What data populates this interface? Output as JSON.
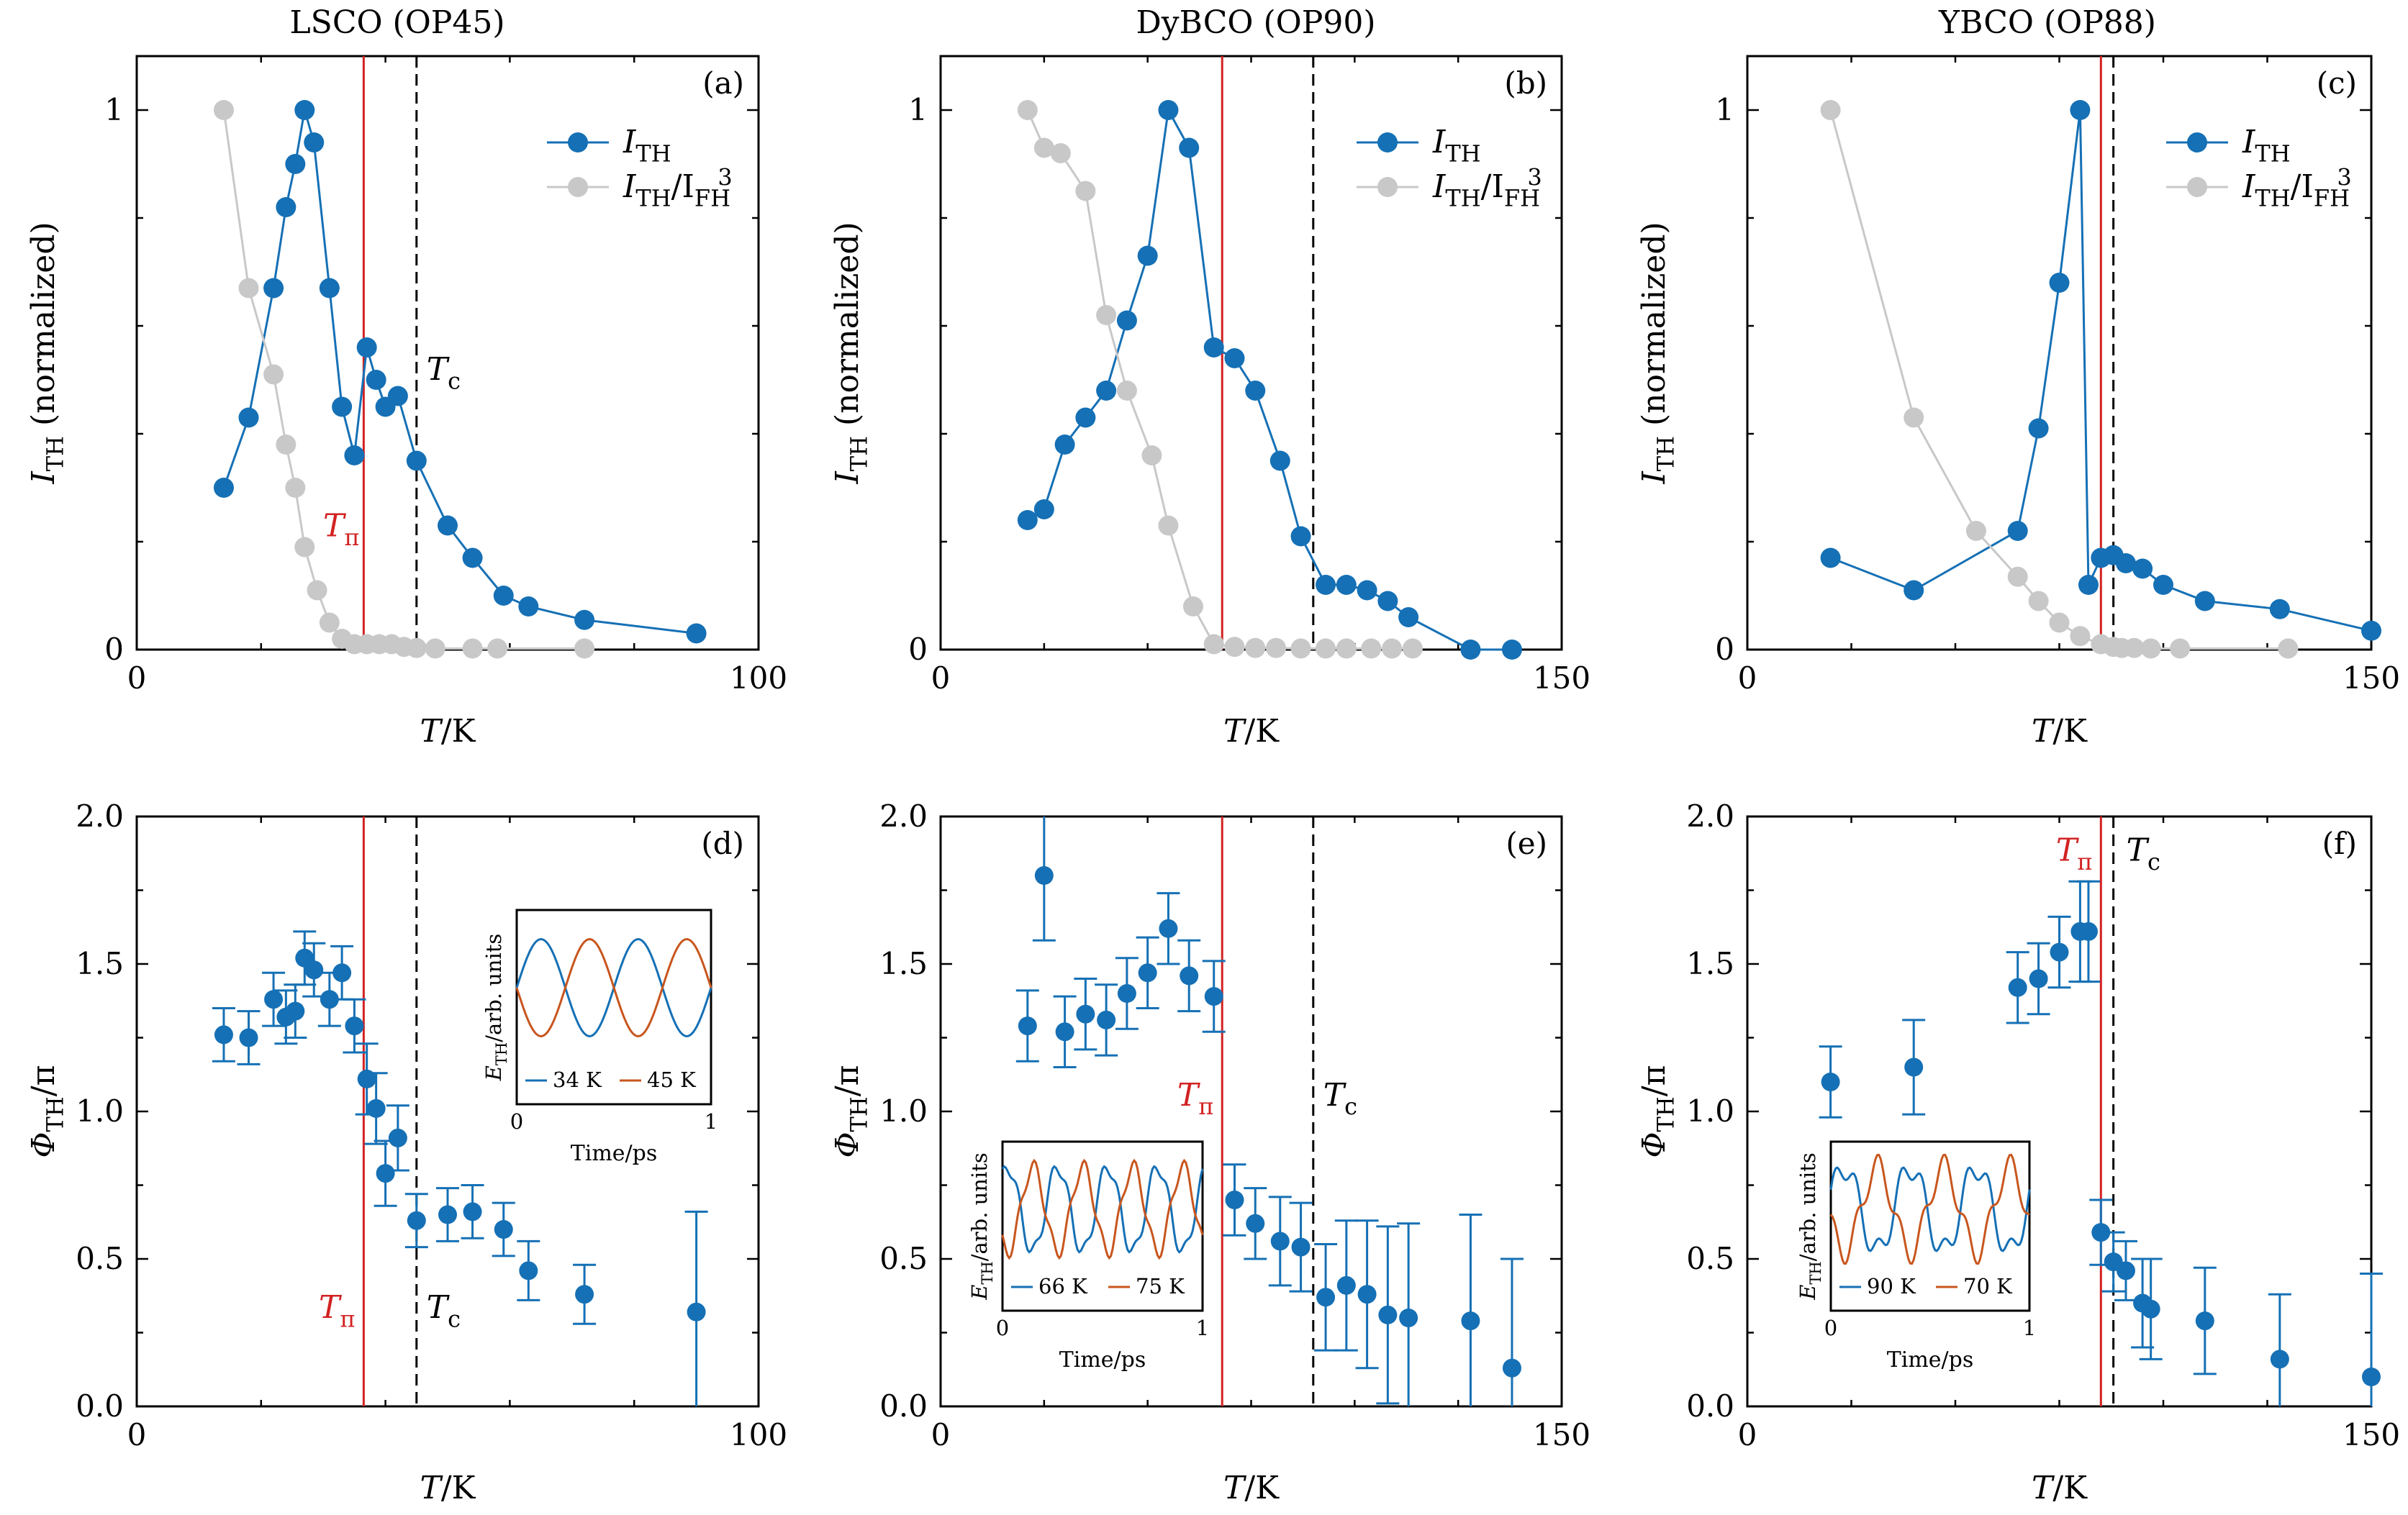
{
  "figure": {
    "columns": [
      {
        "title": "LSCO (OP45)"
      },
      {
        "title": "DyBCO (OP90)"
      },
      {
        "title": "YBCO (OP88)"
      }
    ]
  },
  "colors": {
    "blue": "#1570b5",
    "gray": "#c8c8c8",
    "red": "#d22222",
    "inset_orange": "#c8561e"
  },
  "chart_data": [
    {
      "id": "a",
      "type": "line",
      "panel_label": "(a)",
      "xlabel": "T/K",
      "ylabel": "I_TH (normalized)",
      "xlim": [
        0,
        100
      ],
      "ylim": [
        0,
        1.1
      ],
      "xticks": [
        0,
        100
      ],
      "yticks": [
        0,
        1
      ],
      "legend": {
        "position": "top-right",
        "entries": [
          "I_TH",
          "I_TH/I_FH^3"
        ]
      },
      "series": [
        {
          "name": "I_TH",
          "color": "#1570b5",
          "points": [
            [
              14,
              0.3
            ],
            [
              18,
              0.43
            ],
            [
              22,
              0.67
            ],
            [
              24,
              0.82
            ],
            [
              25.5,
              0.9
            ],
            [
              27,
              1.0
            ],
            [
              28.5,
              0.94
            ],
            [
              31,
              0.67
            ],
            [
              33,
              0.45
            ],
            [
              35,
              0.36
            ],
            [
              37,
              0.56
            ],
            [
              38.5,
              0.5
            ],
            [
              40,
              0.45
            ],
            [
              42,
              0.47
            ],
            [
              45,
              0.35
            ],
            [
              50,
              0.23
            ],
            [
              54,
              0.17
            ],
            [
              59,
              0.1
            ],
            [
              63,
              0.08
            ],
            [
              72,
              0.055
            ],
            [
              90,
              0.03
            ]
          ]
        },
        {
          "name": "I_TH/I_FH^3",
          "color": "#c8c8c8",
          "points": [
            [
              14,
              1.0
            ],
            [
              18,
              0.67
            ],
            [
              22,
              0.51
            ],
            [
              24,
              0.38
            ],
            [
              25.5,
              0.3
            ],
            [
              27,
              0.19
            ],
            [
              29,
              0.11
            ],
            [
              31,
              0.05
            ],
            [
              33,
              0.02
            ],
            [
              35,
              0.01
            ],
            [
              37,
              0.01
            ],
            [
              39,
              0.01
            ],
            [
              41,
              0.01
            ],
            [
              43,
              0.005
            ],
            [
              45,
              0.003
            ],
            [
              48,
              0.002
            ],
            [
              54,
              0.002
            ],
            [
              58,
              0.002
            ],
            [
              72,
              0.002
            ]
          ]
        }
      ],
      "vlines": [
        {
          "label": "T_π",
          "x": 36.5,
          "color": "#d22222",
          "style": "solid"
        },
        {
          "label": "T_c",
          "x": 45,
          "color": "#000000",
          "style": "dashed"
        }
      ]
    },
    {
      "id": "b",
      "type": "line",
      "panel_label": "(b)",
      "xlabel": "T/K",
      "ylabel": "I_TH (normalized)",
      "xlim": [
        0,
        150
      ],
      "ylim": [
        0,
        1.1
      ],
      "xticks": [
        0,
        150
      ],
      "yticks": [
        0,
        1
      ],
      "legend": {
        "position": "top-right",
        "entries": [
          "I_TH",
          "I_TH/I_FH^3"
        ]
      },
      "series": [
        {
          "name": "I_TH",
          "color": "#1570b5",
          "points": [
            [
              21,
              0.24
            ],
            [
              25,
              0.26
            ],
            [
              30,
              0.38
            ],
            [
              35,
              0.43
            ],
            [
              40,
              0.48
            ],
            [
              45,
              0.61
            ],
            [
              50,
              0.73
            ],
            [
              55,
              1.0
            ],
            [
              60,
              0.93
            ],
            [
              66,
              0.56
            ],
            [
              71,
              0.54
            ],
            [
              76,
              0.48
            ],
            [
              82,
              0.35
            ],
            [
              87,
              0.21
            ],
            [
              93,
              0.12
            ],
            [
              98,
              0.12
            ],
            [
              103,
              0.11
            ],
            [
              108,
              0.09
            ],
            [
              113,
              0.06
            ],
            [
              128,
              0.0
            ],
            [
              138,
              0.0
            ]
          ]
        },
        {
          "name": "I_TH/I_FH^3",
          "color": "#c8c8c8",
          "points": [
            [
              21,
              1.0
            ],
            [
              25,
              0.93
            ],
            [
              29,
              0.92
            ],
            [
              35,
              0.85
            ],
            [
              40,
              0.62
            ],
            [
              45,
              0.48
            ],
            [
              51,
              0.36
            ],
            [
              55,
              0.23
            ],
            [
              61,
              0.08
            ],
            [
              66,
              0.01
            ],
            [
              71,
              0.005
            ],
            [
              76,
              0.003
            ],
            [
              81,
              0.003
            ],
            [
              87,
              0.002
            ],
            [
              93,
              0.002
            ],
            [
              98,
              0.002
            ],
            [
              104,
              0.002
            ],
            [
              109,
              0.002
            ],
            [
              114,
              0.002
            ]
          ]
        }
      ],
      "vlines": [
        {
          "label": "T_π",
          "x": 68,
          "color": "#d22222",
          "style": "solid"
        },
        {
          "label": "T_c",
          "x": 90,
          "color": "#000000",
          "style": "dashed"
        }
      ]
    },
    {
      "id": "c",
      "type": "line",
      "panel_label": "(c)",
      "xlabel": "T/K",
      "ylabel": "I_TH (normalized)",
      "xlim": [
        0,
        150
      ],
      "ylim": [
        0,
        1.1
      ],
      "xticks": [
        0,
        150
      ],
      "yticks": [
        0,
        1
      ],
      "legend": {
        "position": "top-right",
        "entries": [
          "I_TH",
          "I_TH/I_FH^3"
        ]
      },
      "series": [
        {
          "name": "I_TH",
          "color": "#1570b5",
          "points": [
            [
              20,
              0.17
            ],
            [
              40,
              0.11
            ],
            [
              65,
              0.22
            ],
            [
              70,
              0.41
            ],
            [
              75,
              0.68
            ],
            [
              80,
              1.0
            ],
            [
              82,
              0.12
            ],
            [
              85,
              0.17
            ],
            [
              88,
              0.175
            ],
            [
              91,
              0.16
            ],
            [
              95,
              0.15
            ],
            [
              100,
              0.12
            ],
            [
              110,
              0.09
            ],
            [
              128,
              0.075
            ],
            [
              150,
              0.035
            ]
          ]
        },
        {
          "name": "I_TH/I_FH^3",
          "color": "#c8c8c8",
          "points": [
            [
              20,
              1.0
            ],
            [
              40,
              0.43
            ],
            [
              55,
              0.22
            ],
            [
              65,
              0.135
            ],
            [
              70,
              0.09
            ],
            [
              75,
              0.05
            ],
            [
              80,
              0.025
            ],
            [
              85,
              0.01
            ],
            [
              88,
              0.005
            ],
            [
              90,
              0.003
            ],
            [
              93,
              0.003
            ],
            [
              97,
              0.002
            ],
            [
              104,
              0.002
            ],
            [
              130,
              0.002
            ]
          ]
        }
      ],
      "vlines": [
        {
          "label": "T_π",
          "x": 85,
          "color": "#d22222",
          "style": "solid"
        },
        {
          "label": "T_c",
          "x": 88,
          "color": "#000000",
          "style": "dashed"
        }
      ]
    },
    {
      "id": "d",
      "type": "scatter",
      "panel_label": "(d)",
      "xlabel": "T/K",
      "ylabel": "Φ_TH/π",
      "xlim": [
        0,
        100
      ],
      "ylim": [
        0,
        2.0
      ],
      "xticks": [
        0,
        100
      ],
      "yticks": [
        0,
        0.5,
        1.0,
        1.5,
        2.0
      ],
      "vline_labels_y": 0.3,
      "series": [
        {
          "name": "Φ_TH",
          "color": "#1570b5",
          "points": [
            [
              14,
              1.26,
              0.09
            ],
            [
              18,
              1.25,
              0.09
            ],
            [
              22,
              1.38,
              0.09
            ],
            [
              24,
              1.32,
              0.09
            ],
            [
              25.5,
              1.34,
              0.09
            ],
            [
              27,
              1.52,
              0.09
            ],
            [
              28.5,
              1.48,
              0.09
            ],
            [
              31,
              1.38,
              0.09
            ],
            [
              33,
              1.47,
              0.09
            ],
            [
              35,
              1.29,
              0.09
            ],
            [
              37,
              1.11,
              0.12
            ],
            [
              38.5,
              1.01,
              0.12
            ],
            [
              40,
              0.79,
              0.11
            ],
            [
              42,
              0.91,
              0.11
            ],
            [
              45,
              0.63,
              0.09
            ],
            [
              50,
              0.65,
              0.09
            ],
            [
              54,
              0.66,
              0.09
            ],
            [
              59,
              0.6,
              0.09
            ],
            [
              63,
              0.46,
              0.1
            ],
            [
              72,
              0.38,
              0.1
            ],
            [
              90,
              0.32,
              0.34
            ]
          ]
        }
      ],
      "vlines": [
        {
          "label": "T_π",
          "x": 36.5,
          "color": "#d22222",
          "style": "solid"
        },
        {
          "label": "T_c",
          "x": 45,
          "color": "#000000",
          "style": "dashed"
        }
      ],
      "inset": {
        "xlabel": "Time/ps",
        "ylabel": "E_TH/arb. units",
        "xticks": [
          0,
          1
        ],
        "legend": [
          {
            "name": "34 K",
            "color": "#1570b5"
          },
          {
            "name": "45 K",
            "color": "#c8561e"
          }
        ]
      }
    },
    {
      "id": "e",
      "type": "scatter",
      "panel_label": "(e)",
      "xlabel": "T/K",
      "ylabel": "Φ_TH/π",
      "xlim": [
        0,
        150
      ],
      "ylim": [
        0,
        2.0
      ],
      "xticks": [
        0,
        150
      ],
      "yticks": [
        0,
        0.5,
        1.0,
        1.5,
        2.0
      ],
      "vline_labels_y": 1.02,
      "series": [
        {
          "name": "Φ_TH",
          "color": "#1570b5",
          "points": [
            [
              21,
              1.29,
              0.12
            ],
            [
              25,
              1.8,
              0.22
            ],
            [
              30,
              1.27,
              0.12
            ],
            [
              35,
              1.33,
              0.12
            ],
            [
              40,
              1.31,
              0.12
            ],
            [
              45,
              1.4,
              0.12
            ],
            [
              50,
              1.47,
              0.12
            ],
            [
              55,
              1.62,
              0.12
            ],
            [
              60,
              1.46,
              0.12
            ],
            [
              66,
              1.39,
              0.12
            ],
            [
              71,
              0.7,
              0.12
            ],
            [
              76,
              0.62,
              0.12
            ],
            [
              82,
              0.56,
              0.15
            ],
            [
              87,
              0.54,
              0.15
            ],
            [
              93,
              0.37,
              0.18
            ],
            [
              98,
              0.41,
              0.22
            ],
            [
              103,
              0.38,
              0.25
            ],
            [
              108,
              0.31,
              0.3
            ],
            [
              113,
              0.3,
              0.32
            ],
            [
              128,
              0.29,
              0.36
            ],
            [
              138,
              0.13,
              0.37
            ]
          ]
        }
      ],
      "vlines": [
        {
          "label": "T_π",
          "x": 68,
          "color": "#d22222",
          "style": "solid"
        },
        {
          "label": "T_c",
          "x": 90,
          "color": "#000000",
          "style": "dashed"
        }
      ],
      "inset": {
        "xlabel": "Time/ps",
        "ylabel": "E_TH/arb. units",
        "xticks": [
          0,
          1
        ],
        "legend": [
          {
            "name": "66 K",
            "color": "#1570b5"
          },
          {
            "name": "75 K",
            "color": "#c8561e"
          }
        ]
      }
    },
    {
      "id": "f",
      "type": "scatter",
      "panel_label": "(f)",
      "xlabel": "T/K",
      "ylabel": "Φ_TH/π",
      "xlim": [
        0,
        150
      ],
      "ylim": [
        0,
        2.0
      ],
      "xticks": [
        0,
        150
      ],
      "yticks": [
        0,
        0.5,
        1.0,
        1.5,
        2.0
      ],
      "vline_labels_y": 1.85,
      "series": [
        {
          "name": "Φ_TH",
          "color": "#1570b5",
          "points": [
            [
              20,
              1.1,
              0.12
            ],
            [
              40,
              1.15,
              0.16
            ],
            [
              65,
              1.42,
              0.12
            ],
            [
              70,
              1.45,
              0.12
            ],
            [
              75,
              1.54,
              0.12
            ],
            [
              80,
              1.61,
              0.17
            ],
            [
              82,
              1.61,
              0.17
            ],
            [
              85,
              0.59,
              0.11
            ],
            [
              88,
              0.49,
              0.1
            ],
            [
              91,
              0.46,
              0.1
            ],
            [
              95,
              0.35,
              0.15
            ],
            [
              97,
              0.33,
              0.17
            ],
            [
              110,
              0.29,
              0.18
            ],
            [
              128,
              0.16,
              0.22
            ],
            [
              150,
              0.1,
              0.35
            ]
          ]
        }
      ],
      "vlines": [
        {
          "label": "T_π",
          "x": 85,
          "color": "#d22222",
          "style": "solid"
        },
        {
          "label": "T_c",
          "x": 88,
          "color": "#000000",
          "style": "dashed"
        }
      ],
      "inset": {
        "xlabel": "Time/ps",
        "ylabel": "E_TH/arb. units",
        "xticks": [
          0,
          1
        ],
        "legend": [
          {
            "name": "90 K",
            "color": "#1570b5"
          },
          {
            "name": "70 K",
            "color": "#c8561e"
          }
        ]
      }
    }
  ]
}
